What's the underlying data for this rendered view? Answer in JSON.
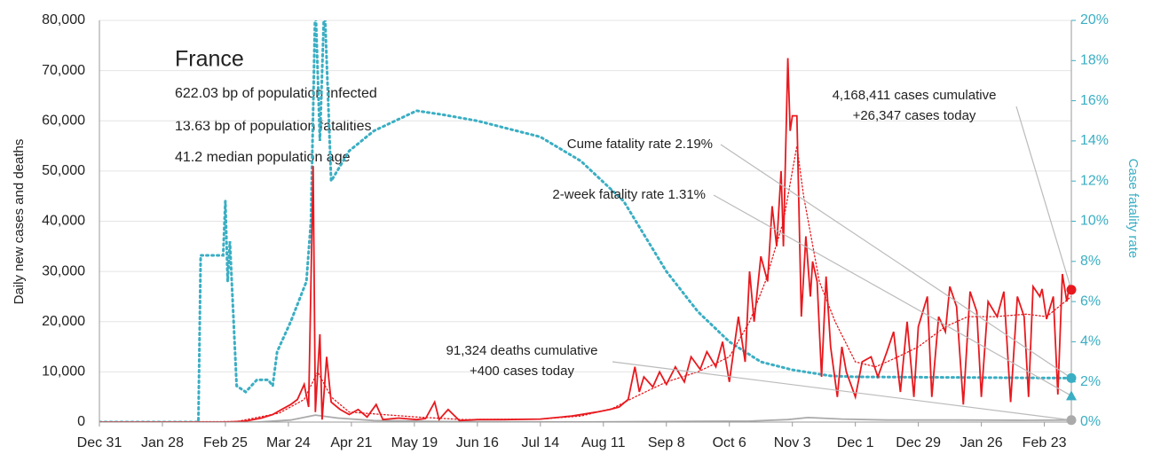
{
  "chart_data": {
    "type": "line",
    "title": "France",
    "info": [
      "622.03 bp of population infected",
      "13.63 bp of population fatalities",
      "41.2 median population age"
    ],
    "ylabel": "Daily new cases and deaths",
    "y2label": "Case fatality rate",
    "xlim": [
      "Dec 31",
      "Mar 7"
    ],
    "xticks": [
      "Dec 31",
      "Jan 28",
      "Feb 25",
      "Mar 24",
      "Apr 21",
      "May 19",
      "Jun 16",
      "Jul 14",
      "Aug 11",
      "Sep 8",
      "Oct 6",
      "Nov 3",
      "Dec 1",
      "Dec 29",
      "Jan 26",
      "Feb 23"
    ],
    "ylim": [
      0,
      80000
    ],
    "yticks": [
      0,
      {
        "value": 10000,
        "label": "10,000"
      },
      {
        "value": 20000,
        "label": "20,000"
      },
      {
        "value": 30000,
        "label": "30,000"
      },
      {
        "value": 40000,
        "label": "40,000"
      },
      {
        "value": 50000,
        "label": "50,000"
      },
      {
        "value": 60000,
        "label": "60,000"
      },
      {
        "value": 70000,
        "label": "70,000"
      },
      {
        "value": 80000,
        "label": "80,000"
      }
    ],
    "y2lim": [
      0,
      20
    ],
    "y2ticks": [
      {
        "value": 0,
        "label": "0%"
      },
      {
        "value": 2,
        "label": "2%"
      },
      {
        "value": 4,
        "label": "4%"
      },
      {
        "value": 6,
        "label": "6%"
      },
      {
        "value": 8,
        "label": "8%"
      },
      {
        "value": 10,
        "label": "10%"
      },
      {
        "value": 12,
        "label": "12%"
      },
      {
        "value": 14,
        "label": "14%"
      },
      {
        "value": 16,
        "label": "16%"
      },
      {
        "value": 18,
        "label": "18%"
      },
      {
        "value": 20,
        "label": "20%"
      }
    ],
    "grid": true,
    "series": [
      {
        "color": "#aaaaaa",
        "style": "solid",
        "x": [
          "Dec 31",
          "Mar 10",
          "Mar 25",
          "Apr 5",
          "Apr 15",
          "May 1",
          "Jun 1",
          "Aug 1",
          "Sep 20",
          "Oct 15",
          "Nov 1",
          "Nov 10",
          "Nov 25",
          "Dec 15",
          "Jan 15",
          "Feb 15",
          "Mar 7"
        ],
        "values": [
          0,
          0,
          400,
          1400,
          800,
          300,
          100,
          20,
          150,
          200,
          500,
          900,
          600,
          400,
          400,
          350,
          400
        ]
      },
      {
        "color": "#3aaec3",
        "style": "dotted",
        "axis": "y2",
        "x": [
          "Dec 31",
          "Feb 13",
          "Feb 14",
          "Feb 24",
          "Feb 25",
          "Feb 26",
          "Feb 27",
          "Mar 1",
          "Mar 5",
          "Mar 10",
          "Mar 15",
          "Mar 17",
          "Mar 19",
          "Mar 25",
          "Apr 1",
          "Apr 3",
          "Apr 5",
          "Apr 7",
          "Apr 9",
          "Apr 12",
          "Apr 20",
          "May 1",
          "May 20",
          "Jun 1",
          "Jun 16",
          "Jul 14",
          "Aug 1",
          "Aug 20",
          "Sep 8",
          "Sep 22",
          "Oct 6",
          "Oct 20",
          "Nov 3",
          "Nov 20",
          "Dec 1",
          "Mar 7"
        ],
        "values": [
          0,
          0,
          8.3,
          8.3,
          11,
          7,
          9,
          1.8,
          1.5,
          2.1,
          2.1,
          1.8,
          3.5,
          5,
          7,
          10,
          21,
          14,
          21,
          12,
          13.5,
          14.5,
          15.5,
          15.3,
          15,
          14.2,
          13,
          11,
          7.5,
          5.5,
          4,
          3,
          2.6,
          2.3,
          2.25,
          2.19
        ]
      },
      {
        "color": "#e8191e",
        "style": "dotted",
        "x": [
          "Dec 31",
          "Mar 1",
          "Mar 20",
          "Mar 31",
          "Apr 6",
          "Apr 12",
          "Apr 20",
          "May 5",
          "May 20",
          "Jun 10",
          "Jul 14",
          "Aug 1",
          "Aug 15",
          "Aug 25",
          "Sep 8",
          "Sep 22",
          "Oct 6",
          "Oct 15",
          "Oct 22",
          "Oct 30",
          "Nov 5",
          "Nov 8",
          "Nov 15",
          "Nov 22",
          "Dec 1",
          "Dec 10",
          "Dec 20",
          "Dec 29",
          "Jan 10",
          "Jan 20",
          "Feb 1",
          "Feb 15",
          "Feb 24",
          "Mar 7"
        ],
        "values": [
          0,
          100,
          1800,
          4500,
          10000,
          5000,
          2000,
          1500,
          1000,
          500,
          600,
          1200,
          2700,
          5000,
          8000,
          10000,
          13000,
          20000,
          28000,
          40000,
          55000,
          45000,
          28000,
          20000,
          12000,
          11000,
          13000,
          15000,
          19000,
          21000,
          21000,
          21500,
          21000,
          25000
        ]
      },
      {
        "color": "#e8191e",
        "style": "solid",
        "x": [
          "Dec 31",
          "Feb 25",
          "Mar 5",
          "Mar 12",
          "Mar 17",
          "Mar 21",
          "Mar 25",
          "Mar 28",
          "Mar 31",
          "Apr 2",
          "Apr 4",
          "Apr 5",
          "Apr 7",
          "Apr 8",
          "Apr 10",
          "Apr 12",
          "Apr 16",
          "Apr 20",
          "Apr 24",
          "Apr 28",
          "May 2",
          "May 5",
          "May 12",
          "May 20",
          "May 24",
          "May 28",
          "May 30",
          "Jun 3",
          "Jun 8",
          "Jun 16",
          "Jun 28",
          "Jul 14",
          "Jul 28",
          "Aug 8",
          "Aug 14",
          "Aug 18",
          "Aug 22",
          "Aug 25",
          "Aug 27",
          "Aug 29",
          "Sep 2",
          "Sep 5",
          "Sep 8",
          "Sep 12",
          "Sep 16",
          "Sep 19",
          "Sep 23",
          "Sep 26",
          "Sep 30",
          "Oct 3",
          "Oct 6",
          "Oct 10",
          "Oct 13",
          "Oct 15",
          "Oct 17",
          "Oct 20",
          "Oct 23",
          "Oct 25",
          "Oct 27",
          "Oct 29",
          "Oct 30",
          "Nov 1",
          "Nov 2",
          "Nov 3",
          "Nov 5",
          "Nov 7",
          "Nov 9",
          "Nov 11",
          "Nov 12",
          "Nov 14",
          "Nov 16",
          "Nov 18",
          "Nov 20",
          "Nov 23",
          "Nov 25",
          "Nov 27",
          "Dec 1",
          "Dec 4",
          "Dec 8",
          "Dec 11",
          "Dec 15",
          "Dec 18",
          "Dec 21",
          "Dec 24",
          "Dec 27",
          "Dec 29",
          "Jan 2",
          "Jan 4",
          "Jan 7",
          "Jan 10",
          "Jan 12",
          "Jan 15",
          "Jan 18",
          "Jan 21",
          "Jan 24",
          "Jan 26",
          "Jan 29",
          "Feb 2",
          "Feb 5",
          "Feb 8",
          "Feb 11",
          "Feb 14",
          "Feb 16",
          "Feb 18",
          "Feb 21",
          "Feb 22",
          "Feb 24",
          "Feb 27",
          "Mar 1",
          "Mar 3",
          "Mar 5",
          "Mar 6",
          "Mar 7"
        ],
        "values": [
          0,
          0,
          200,
          800,
          1500,
          2500,
          3500,
          4500,
          7500,
          3000,
          51000,
          2000,
          17500,
          500,
          13000,
          4000,
          2500,
          1500,
          2500,
          1000,
          3500,
          500,
          800,
          500,
          700,
          4000,
          500,
          2500,
          300,
          500,
          500,
          600,
          1200,
          2000,
          2500,
          3000,
          4500,
          11000,
          6000,
          9000,
          7000,
          10000,
          7500,
          11000,
          8000,
          13000,
          10500,
          14000,
          11000,
          16000,
          8000,
          21000,
          12000,
          30000,
          20000,
          33000,
          28000,
          43000,
          35000,
          50000,
          35000,
          72500,
          58000,
          61000,
          61000,
          21000,
          37000,
          25000,
          32000,
          28000,
          9000,
          29000,
          15000,
          5000,
          15000,
          10000,
          5000,
          12000,
          13000,
          9000,
          14000,
          18000,
          6000,
          20000,
          5000,
          19000,
          25000,
          5000,
          21000,
          18000,
          27000,
          23000,
          3500,
          26000,
          22000,
          5000,
          24000,
          21000,
          26000,
          4000,
          25000,
          21000,
          5000,
          27000,
          25000,
          26500,
          20500,
          25000,
          5500,
          29500,
          24000,
          27000,
          26347
        ]
      }
    ],
    "markers": [
      {
        "value": 26347,
        "shape": "circle",
        "color": "#e8191e"
      },
      {
        "value": 2.19,
        "shape": "circle",
        "color": "#3aaec3",
        "axis": "y2"
      },
      {
        "value": 1.31,
        "shape": "triangle",
        "color": "#3aaec3",
        "axis": "y2"
      },
      {
        "value": 400,
        "shape": "circle",
        "color": "#aaaaaa"
      }
    ],
    "annotations": [
      {
        "lines": [
          "4,168,411 cases cumulative",
          "+26,347 cases today"
        ]
      },
      {
        "lines": [
          "Cume fatality rate 2.19%"
        ]
      },
      {
        "lines": [
          "2-week fatality rate 1.31%"
        ]
      },
      {
        "lines": [
          "91,324 deaths cumulative",
          "+400 cases today"
        ]
      }
    ]
  }
}
